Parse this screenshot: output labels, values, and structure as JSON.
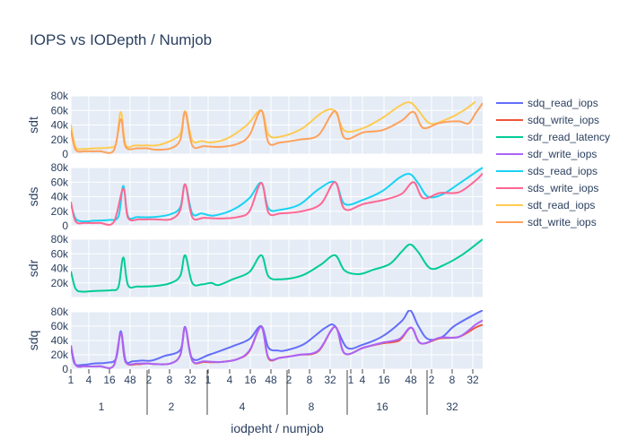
{
  "chart_data": {
    "type": "line",
    "title": "IOPS vs IODepth / Numjob",
    "xlabel": "iodpeht / numjob",
    "x_groups": [
      {
        "label": "1",
        "ticks": [
          "1",
          "4",
          "16",
          "48"
        ]
      },
      {
        "label": "2",
        "ticks": [
          "2",
          "8",
          "32"
        ]
      },
      {
        "label": "4",
        "ticks": [
          "1",
          "4",
          "16",
          "48"
        ]
      },
      {
        "label": "8",
        "ticks": [
          "2",
          "8",
          "32"
        ]
      },
      {
        "label": "16",
        "ticks": [
          "1",
          "4",
          "16",
          "48"
        ]
      },
      {
        "label": "32",
        "ticks": [
          "2",
          "8",
          "32"
        ]
      }
    ],
    "grid": true,
    "legend_position": "right",
    "panels": [
      {
        "ylabel": "sdt",
        "ylim": [
          0,
          80000
        ],
        "yticks": [
          "0",
          "20k",
          "40k",
          "60k",
          "80k"
        ],
        "series": [
          "sdt_read_iops",
          "sdt_write_iops"
        ]
      },
      {
        "ylabel": "sds",
        "ylim": [
          0,
          80000
        ],
        "yticks": [
          "0",
          "20k",
          "40k",
          "60k",
          "80k"
        ],
        "series": [
          "sds_read_iops",
          "sds_write_iops"
        ]
      },
      {
        "ylabel": "sdr",
        "ylim": [
          0,
          80000
        ],
        "yticks": [
          "20k",
          "40k",
          "60k",
          "80k"
        ],
        "series": [
          "sdr_read_latency"
        ]
      },
      {
        "ylabel": "sdq",
        "ylim": [
          0,
          80000
        ],
        "yticks": [
          "0",
          "20k",
          "40k",
          "60k",
          "80k"
        ],
        "series": [
          "sdq_read_iops",
          "sdq_write_iops",
          "sdr_write_iops"
        ]
      }
    ],
    "series": [
      {
        "name": "sdq_read_iops",
        "color": "#636efa",
        "values": [
          [
            0,
            33000
          ],
          [
            3,
            8000
          ],
          [
            10,
            6000
          ],
          [
            20,
            8000
          ],
          [
            30,
            9000
          ],
          [
            38,
            15000
          ],
          [
            42,
            53000
          ],
          [
            46,
            12000
          ],
          [
            52,
            11000
          ],
          [
            60,
            12000
          ],
          [
            68,
            12000
          ],
          [
            78,
            18000
          ],
          [
            92,
            27000
          ],
          [
            96,
            59000
          ],
          [
            102,
            15000
          ],
          [
            116,
            20000
          ],
          [
            136,
            32000
          ],
          [
            150,
            42000
          ],
          [
            160,
            60000
          ],
          [
            166,
            30000
          ],
          [
            174,
            26000
          ],
          [
            180,
            26000
          ],
          [
            196,
            35000
          ],
          [
            214,
            58000
          ],
          [
            222,
            60000
          ],
          [
            232,
            30000
          ],
          [
            245,
            34000
          ],
          [
            262,
            46000
          ],
          [
            278,
            67000
          ],
          [
            285,
            82000
          ],
          [
            292,
            60000
          ],
          [
            300,
            42000
          ],
          [
            312,
            45000
          ],
          [
            322,
            60000
          ],
          [
            340,
            77000
          ],
          [
            346,
            82000
          ]
        ]
      },
      {
        "name": "sdq_write_iops",
        "color": "#ef553b",
        "values": [
          [
            0,
            33000
          ],
          [
            4,
            6000
          ],
          [
            12,
            4000
          ],
          [
            24,
            4000
          ],
          [
            36,
            5000
          ],
          [
            42,
            50000
          ],
          [
            46,
            10000
          ],
          [
            56,
            7000
          ],
          [
            64,
            8000
          ],
          [
            72,
            7000
          ],
          [
            84,
            8000
          ],
          [
            92,
            20000
          ],
          [
            96,
            58000
          ],
          [
            102,
            12000
          ],
          [
            112,
            10000
          ],
          [
            126,
            10000
          ],
          [
            140,
            14000
          ],
          [
            150,
            25000
          ],
          [
            160,
            59000
          ],
          [
            166,
            15000
          ],
          [
            176,
            16000
          ],
          [
            192,
            20000
          ],
          [
            208,
            25000
          ],
          [
            222,
            59000
          ],
          [
            230,
            22000
          ],
          [
            246,
            30000
          ],
          [
            262,
            36000
          ],
          [
            276,
            40000
          ],
          [
            286,
            58000
          ],
          [
            294,
            36000
          ],
          [
            310,
            43000
          ],
          [
            326,
            45000
          ],
          [
            340,
            58000
          ],
          [
            346,
            62000
          ]
        ]
      },
      {
        "name": "sdr_read_latency",
        "color": "#00cc96",
        "values": [
          [
            0,
            36000
          ],
          [
            4,
            12000
          ],
          [
            10,
            8000
          ],
          [
            20,
            9000
          ],
          [
            34,
            10000
          ],
          [
            40,
            15000
          ],
          [
            44,
            55000
          ],
          [
            48,
            17000
          ],
          [
            56,
            15000
          ],
          [
            72,
            16000
          ],
          [
            84,
            20000
          ],
          [
            92,
            30000
          ],
          [
            96,
            58000
          ],
          [
            102,
            20000
          ],
          [
            110,
            18000
          ],
          [
            118,
            20000
          ],
          [
            124,
            17000
          ],
          [
            136,
            25000
          ],
          [
            150,
            35000
          ],
          [
            160,
            58000
          ],
          [
            166,
            29000
          ],
          [
            176,
            25000
          ],
          [
            194,
            30000
          ],
          [
            210,
            45000
          ],
          [
            222,
            58000
          ],
          [
            230,
            37000
          ],
          [
            242,
            32000
          ],
          [
            254,
            38000
          ],
          [
            268,
            46000
          ],
          [
            278,
            63000
          ],
          [
            285,
            73000
          ],
          [
            292,
            62000
          ],
          [
            302,
            40000
          ],
          [
            314,
            45000
          ],
          [
            330,
            60000
          ],
          [
            346,
            80000
          ]
        ]
      },
      {
        "name": "sdr_write_iops",
        "color": "#ab63fa",
        "values": [
          [
            0,
            33000
          ],
          [
            4,
            6000
          ],
          [
            12,
            4000
          ],
          [
            24,
            4000
          ],
          [
            36,
            5000
          ],
          [
            42,
            50000
          ],
          [
            46,
            10000
          ],
          [
            56,
            8000
          ],
          [
            64,
            8000
          ],
          [
            72,
            7000
          ],
          [
            84,
            8000
          ],
          [
            92,
            20000
          ],
          [
            96,
            58000
          ],
          [
            102,
            12000
          ],
          [
            112,
            11000
          ],
          [
            126,
            10000
          ],
          [
            140,
            14000
          ],
          [
            150,
            26000
          ],
          [
            160,
            59000
          ],
          [
            166,
            16000
          ],
          [
            176,
            16000
          ],
          [
            192,
            20000
          ],
          [
            208,
            26000
          ],
          [
            222,
            59000
          ],
          [
            230,
            22000
          ],
          [
            246,
            30000
          ],
          [
            262,
            37000
          ],
          [
            276,
            42000
          ],
          [
            286,
            58000
          ],
          [
            294,
            36000
          ],
          [
            310,
            44000
          ],
          [
            326,
            45000
          ],
          [
            340,
            62000
          ],
          [
            346,
            68000
          ]
        ]
      },
      {
        "name": "sds_read_iops",
        "color": "#19d3f3",
        "values": [
          [
            0,
            30000
          ],
          [
            4,
            10000
          ],
          [
            10,
            6000
          ],
          [
            20,
            7000
          ],
          [
            32,
            8000
          ],
          [
            40,
            13000
          ],
          [
            44,
            55000
          ],
          [
            48,
            13000
          ],
          [
            56,
            12000
          ],
          [
            70,
            12000
          ],
          [
            84,
            16000
          ],
          [
            92,
            26000
          ],
          [
            96,
            57000
          ],
          [
            102,
            17000
          ],
          [
            110,
            17000
          ],
          [
            120,
            14000
          ],
          [
            136,
            22000
          ],
          [
            150,
            38000
          ],
          [
            160,
            59000
          ],
          [
            166,
            24000
          ],
          [
            176,
            22000
          ],
          [
            192,
            29000
          ],
          [
            208,
            50000
          ],
          [
            222,
            60000
          ],
          [
            230,
            30000
          ],
          [
            246,
            36000
          ],
          [
            262,
            48000
          ],
          [
            276,
            66000
          ],
          [
            285,
            71000
          ],
          [
            292,
            58000
          ],
          [
            300,
            40000
          ],
          [
            312,
            43000
          ],
          [
            328,
            60000
          ],
          [
            346,
            80000
          ]
        ]
      },
      {
        "name": "sds_write_iops",
        "color": "#ff6692",
        "values": [
          [
            0,
            33000
          ],
          [
            4,
            6000
          ],
          [
            12,
            4000
          ],
          [
            24,
            4000
          ],
          [
            36,
            5000
          ],
          [
            44,
            51000
          ],
          [
            48,
            11000
          ],
          [
            58,
            9000
          ],
          [
            70,
            9000
          ],
          [
            84,
            9000
          ],
          [
            92,
            22000
          ],
          [
            96,
            57000
          ],
          [
            102,
            12000
          ],
          [
            112,
            11000
          ],
          [
            126,
            10000
          ],
          [
            140,
            12000
          ],
          [
            150,
            20000
          ],
          [
            160,
            59000
          ],
          [
            166,
            18000
          ],
          [
            176,
            17000
          ],
          [
            194,
            20000
          ],
          [
            210,
            30000
          ],
          [
            222,
            60000
          ],
          [
            230,
            23000
          ],
          [
            246,
            30000
          ],
          [
            264,
            36000
          ],
          [
            278,
            44000
          ],
          [
            288,
            60000
          ],
          [
            296,
            38000
          ],
          [
            310,
            45000
          ],
          [
            326,
            46000
          ],
          [
            340,
            62000
          ],
          [
            346,
            72000
          ]
        ]
      },
      {
        "name": "sdt_read_iops",
        "color": "#fecb52",
        "values": [
          [
            0,
            40000
          ],
          [
            4,
            10000
          ],
          [
            10,
            7000
          ],
          [
            20,
            8000
          ],
          [
            32,
            9000
          ],
          [
            38,
            15000
          ],
          [
            42,
            58000
          ],
          [
            46,
            13000
          ],
          [
            54,
            12000
          ],
          [
            64,
            12000
          ],
          [
            72,
            12000
          ],
          [
            82,
            17000
          ],
          [
            92,
            28000
          ],
          [
            96,
            59000
          ],
          [
            102,
            19000
          ],
          [
            110,
            18000
          ],
          [
            118,
            16000
          ],
          [
            132,
            22000
          ],
          [
            148,
            40000
          ],
          [
            160,
            60000
          ],
          [
            166,
            27000
          ],
          [
            176,
            24000
          ],
          [
            194,
            35000
          ],
          [
            212,
            58000
          ],
          [
            222,
            59000
          ],
          [
            230,
            32000
          ],
          [
            246,
            36000
          ],
          [
            262,
            50000
          ],
          [
            276,
            66000
          ],
          [
            285,
            71000
          ],
          [
            292,
            60000
          ],
          [
            302,
            42000
          ],
          [
            316,
            48000
          ],
          [
            330,
            60000
          ],
          [
            340,
            72000
          ]
        ]
      },
      {
        "name": "sdt_write_iops",
        "color": "#ffa15a",
        "values": [
          [
            0,
            33000
          ],
          [
            4,
            6000
          ],
          [
            12,
            4000
          ],
          [
            24,
            4000
          ],
          [
            36,
            5000
          ],
          [
            42,
            48000
          ],
          [
            46,
            10000
          ],
          [
            56,
            8000
          ],
          [
            64,
            8000
          ],
          [
            72,
            6000
          ],
          [
            84,
            8000
          ],
          [
            92,
            20000
          ],
          [
            96,
            58000
          ],
          [
            102,
            12000
          ],
          [
            112,
            11000
          ],
          [
            126,
            10000
          ],
          [
            140,
            14000
          ],
          [
            150,
            26000
          ],
          [
            160,
            60000
          ],
          [
            166,
            16000
          ],
          [
            176,
            16000
          ],
          [
            192,
            20000
          ],
          [
            208,
            26000
          ],
          [
            222,
            59000
          ],
          [
            230,
            22000
          ],
          [
            246,
            30000
          ],
          [
            262,
            33000
          ],
          [
            278,
            46000
          ],
          [
            288,
            58000
          ],
          [
            296,
            36000
          ],
          [
            310,
            43000
          ],
          [
            326,
            45000
          ],
          [
            334,
            42000
          ],
          [
            340,
            56000
          ],
          [
            346,
            70000
          ]
        ]
      }
    ]
  }
}
